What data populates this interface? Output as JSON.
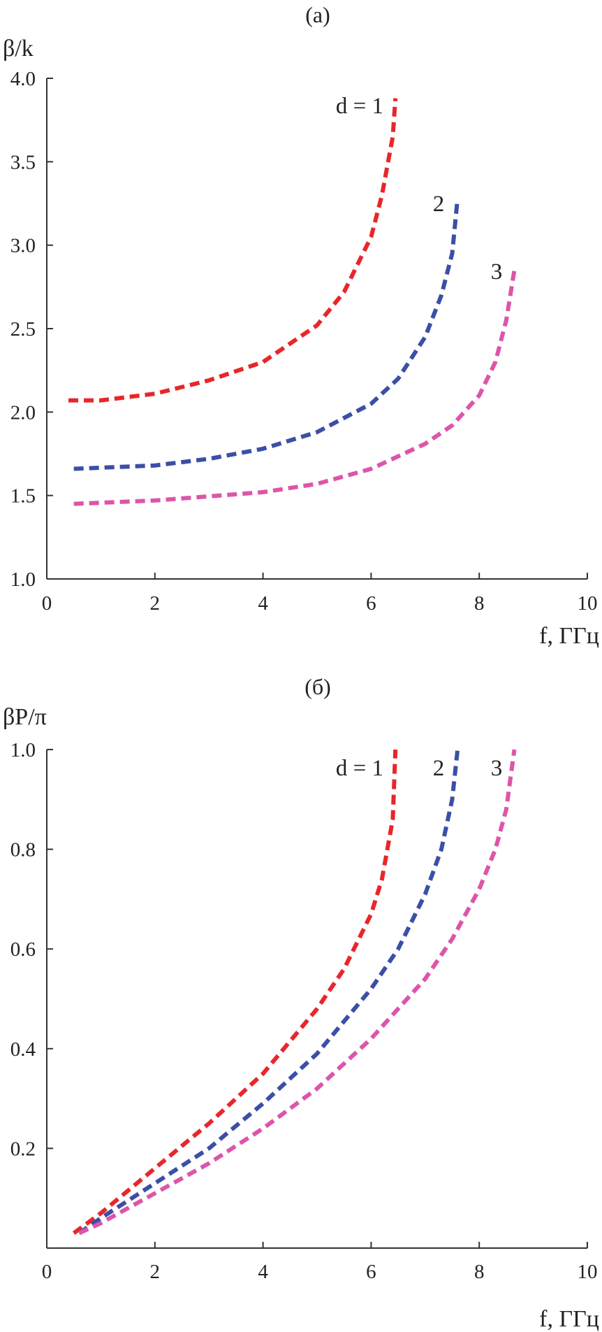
{
  "chart_data": [
    {
      "type": "line",
      "title": "(a)",
      "ylabel": "β/k",
      "xlabel": "f, ГГц",
      "xlim": [
        0,
        10
      ],
      "ylim": [
        1.0,
        4.0
      ],
      "x_ticks": [
        "0",
        "2",
        "4",
        "6",
        "8",
        "10"
      ],
      "y_ticks": [
        "1.0",
        "1.5",
        "2.0",
        "2.5",
        "3.0",
        "3.5",
        "4.0"
      ],
      "grid": false,
      "line_style": "dashed",
      "series": [
        {
          "name": "d = 1",
          "color": "#e8262b",
          "x": [
            0.4,
            1.0,
            2.0,
            3.0,
            4.0,
            5.0,
            5.5,
            6.0,
            6.2,
            6.4,
            6.45
          ],
          "y": [
            2.07,
            2.07,
            2.11,
            2.19,
            2.3,
            2.52,
            2.72,
            3.05,
            3.3,
            3.65,
            3.88
          ]
        },
        {
          "name": "2",
          "color": "#3b4fa6",
          "x": [
            0.5,
            2.0,
            3.0,
            4.0,
            5.0,
            6.0,
            6.5,
            7.0,
            7.3,
            7.5,
            7.6
          ],
          "y": [
            1.66,
            1.68,
            1.72,
            1.78,
            1.88,
            2.05,
            2.2,
            2.45,
            2.7,
            2.95,
            3.28
          ]
        },
        {
          "name": "3",
          "color": "#dd55aa",
          "x": [
            0.5,
            2.0,
            4.0,
            5.0,
            6.0,
            7.0,
            7.5,
            8.0,
            8.3,
            8.5,
            8.65
          ],
          "y": [
            1.45,
            1.47,
            1.52,
            1.57,
            1.66,
            1.81,
            1.92,
            2.1,
            2.3,
            2.55,
            2.85
          ]
        }
      ]
    },
    {
      "type": "line",
      "title": "(б)",
      "ylabel": "βP/π",
      "xlabel": "f, ГГц",
      "xlim": [
        0,
        10
      ],
      "ylim": [
        0,
        1.0
      ],
      "x_ticks": [
        "0",
        "2",
        "4",
        "6",
        "8",
        "10"
      ],
      "y_ticks": [
        "0.2",
        "0.4",
        "0.6",
        "0.8",
        "1.0"
      ],
      "grid": false,
      "line_style": "dashed",
      "series": [
        {
          "name": "d = 1",
          "color": "#e8262b",
          "x": [
            0.5,
            1.0,
            2.0,
            3.0,
            4.0,
            5.0,
            5.5,
            6.0,
            6.2,
            6.4,
            6.45
          ],
          "y": [
            0.03,
            0.07,
            0.16,
            0.25,
            0.35,
            0.48,
            0.56,
            0.67,
            0.74,
            0.86,
            1.0
          ]
        },
        {
          "name": "2",
          "color": "#3b4fa6",
          "x": [
            0.6,
            1.0,
            2.0,
            3.0,
            4.0,
            5.0,
            6.0,
            6.5,
            7.0,
            7.3,
            7.5,
            7.6
          ],
          "y": [
            0.03,
            0.06,
            0.13,
            0.2,
            0.29,
            0.39,
            0.52,
            0.6,
            0.71,
            0.8,
            0.9,
            1.0
          ]
        },
        {
          "name": "3",
          "color": "#dd55aa",
          "x": [
            0.6,
            1.0,
            2.0,
            3.0,
            4.0,
            5.0,
            6.0,
            7.0,
            7.5,
            8.0,
            8.3,
            8.5,
            8.65
          ],
          "y": [
            0.03,
            0.05,
            0.11,
            0.17,
            0.24,
            0.32,
            0.42,
            0.54,
            0.62,
            0.72,
            0.8,
            0.88,
            1.0
          ]
        }
      ]
    }
  ]
}
